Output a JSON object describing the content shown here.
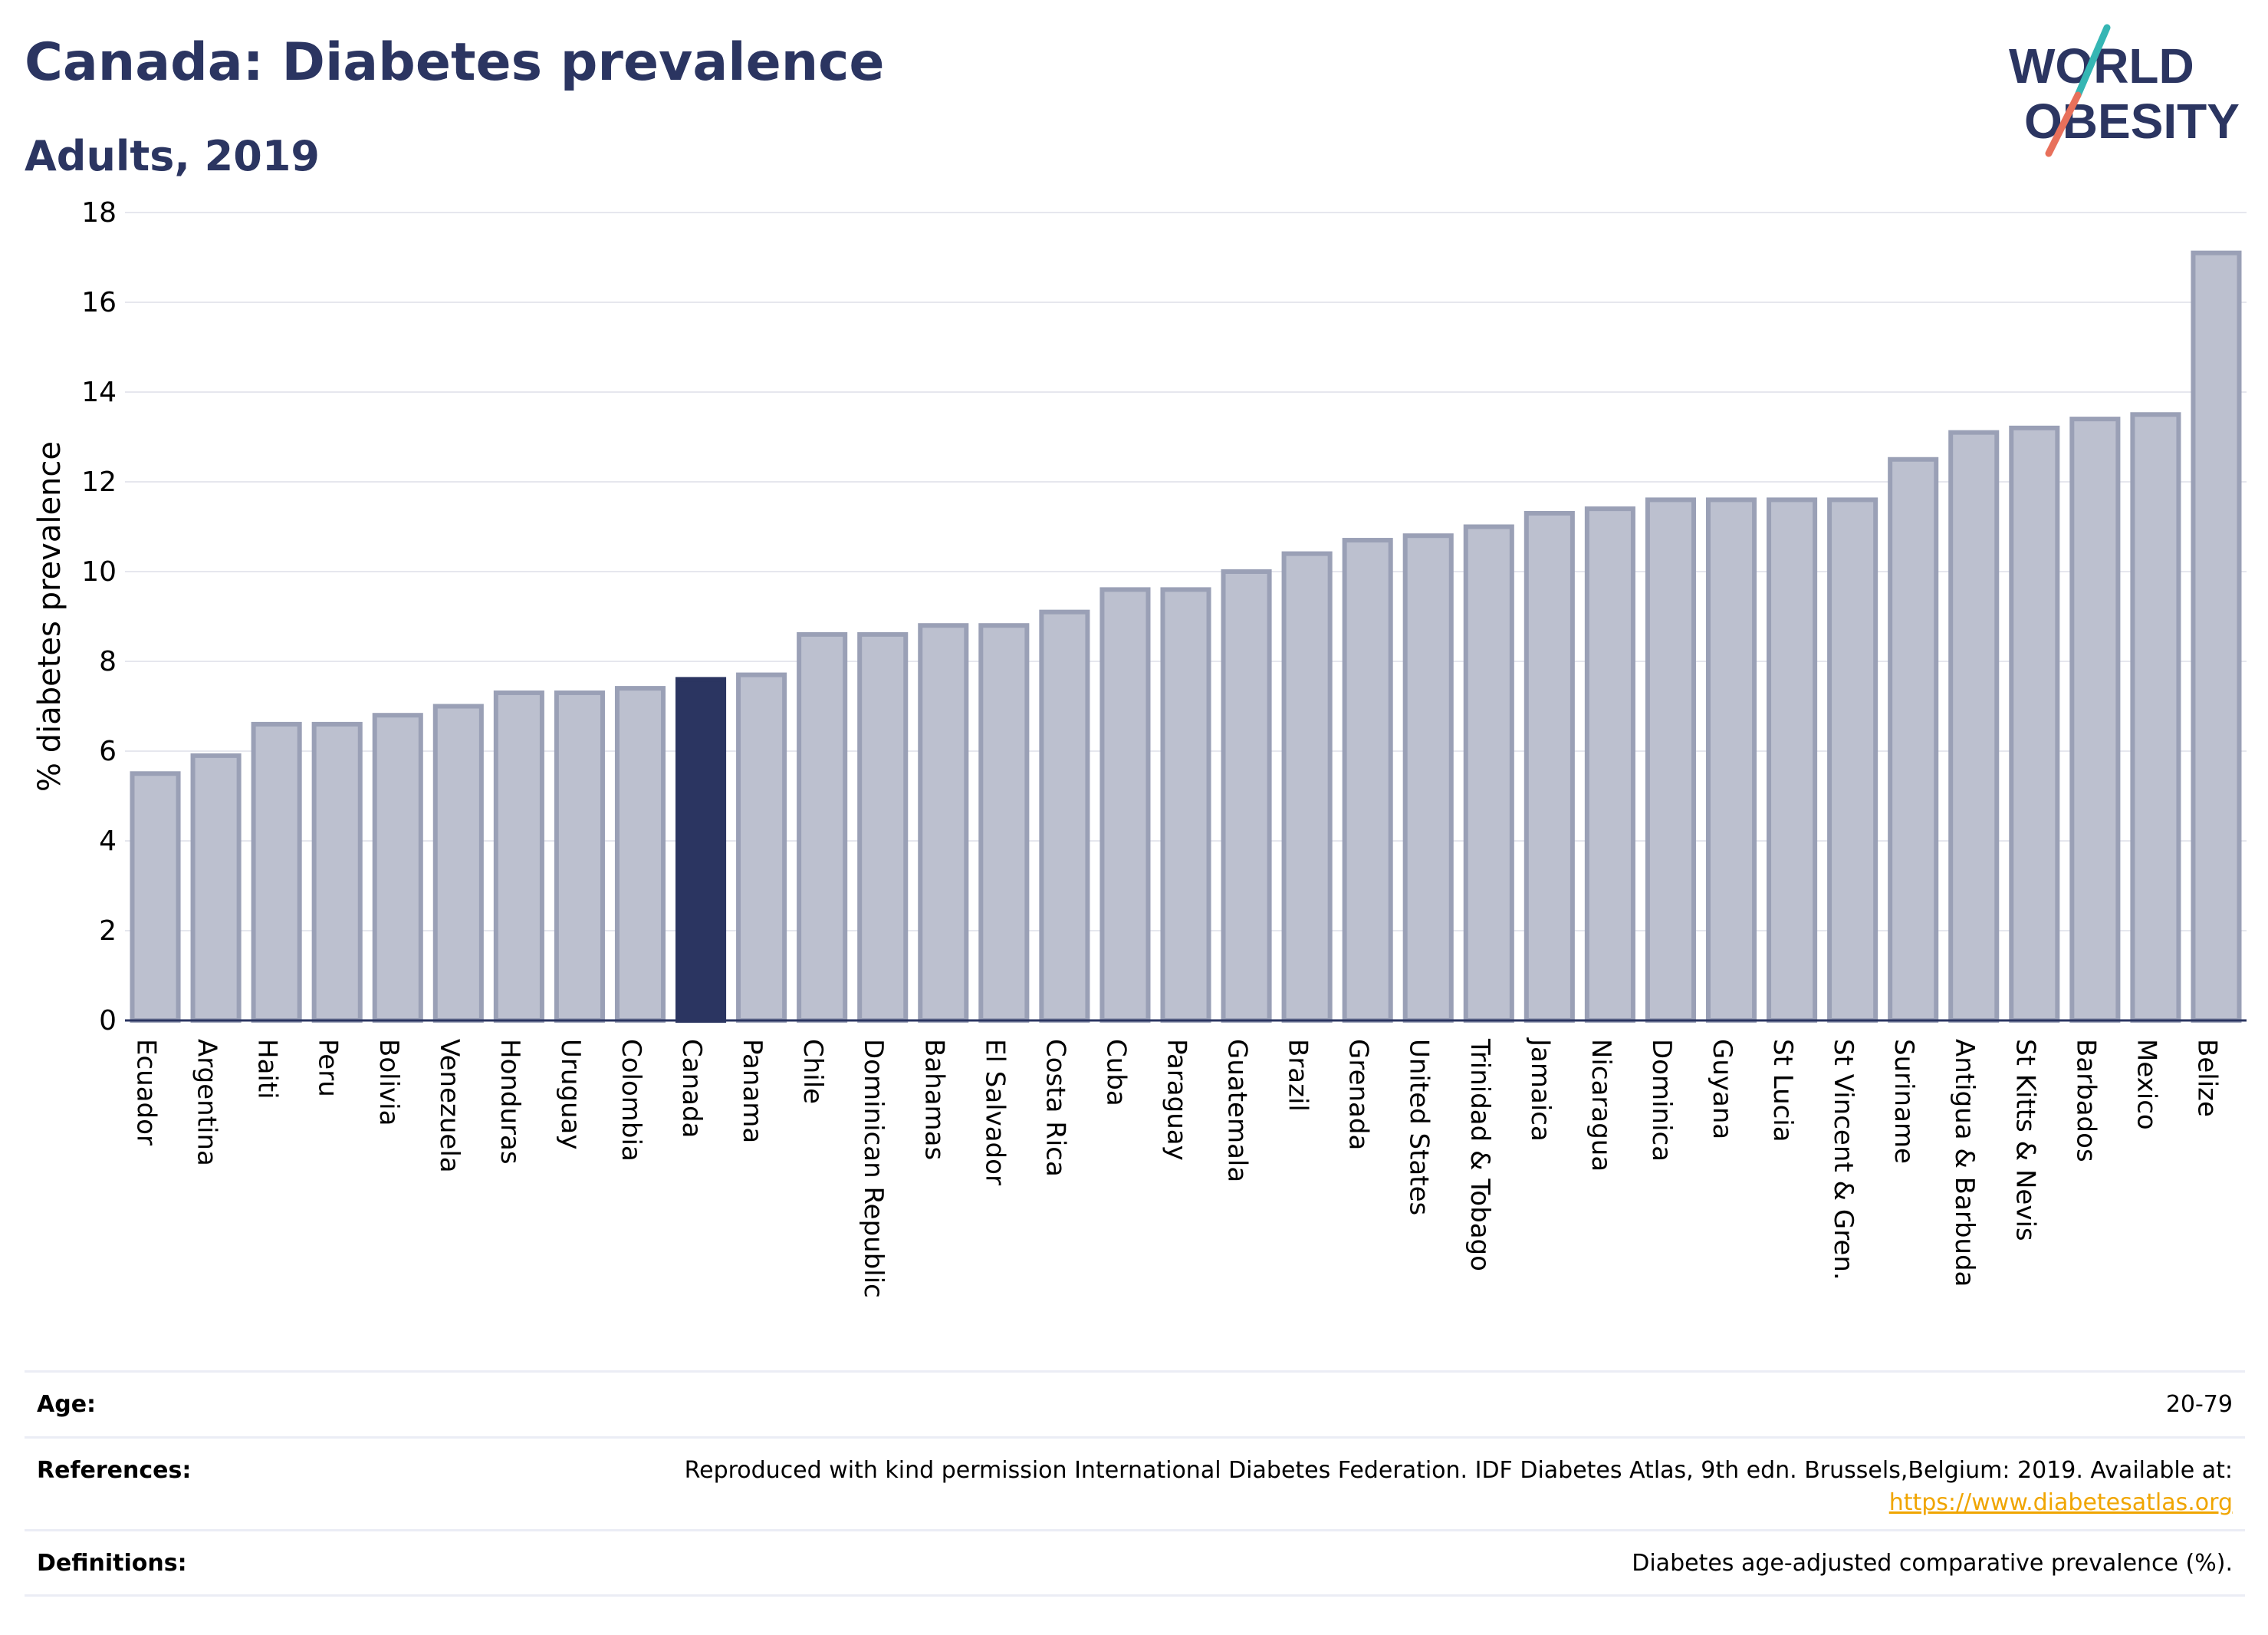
{
  "header": {
    "title": "Canada: Diabetes prevalence",
    "subtitle": "Adults, 2019"
  },
  "logo": {
    "line1": "WORLD",
    "line2": "OBESITY"
  },
  "colors": {
    "bar": "#bcc0cf",
    "bar_border": "#9aa0b6",
    "highlight": "#2b3561",
    "title": "#2b3561",
    "logo_slash_red": "#e8705b",
    "logo_slash_teal": "#35b6b4",
    "link": "#f0a500"
  },
  "chart_data": {
    "type": "bar",
    "title": "Canada: Diabetes prevalence",
    "subtitle": "Adults, 2019",
    "xlabel": "",
    "ylabel": "% diabetes prevalence",
    "ylim": [
      0,
      18
    ],
    "yticks": [
      0,
      2,
      4,
      6,
      8,
      10,
      12,
      14,
      16,
      18
    ],
    "grid": true,
    "highlight": "Canada",
    "categories": [
      "Ecuador",
      "Argentina",
      "Haiti",
      "Peru",
      "Bolivia",
      "Venezuela",
      "Honduras",
      "Uruguay",
      "Colombia",
      "Canada",
      "Panama",
      "Chile",
      "Dominican Republic",
      "Bahamas",
      "El Salvador",
      "Costa Rica",
      "Cuba",
      "Paraguay",
      "Guatemala",
      "Brazil",
      "Grenada",
      "United States",
      "Trinidad & Tobago",
      "Jamaica",
      "Nicaragua",
      "Dominica",
      "Guyana",
      "St Lucia",
      "St Vincent & Gren.",
      "Suriname",
      "Antigua & Barbuda",
      "St Kitts & Nevis",
      "Barbados",
      "Mexico",
      "Belize"
    ],
    "values": [
      5.5,
      5.9,
      6.6,
      6.6,
      6.8,
      7.0,
      7.3,
      7.3,
      7.4,
      7.6,
      7.7,
      8.6,
      8.6,
      8.8,
      8.8,
      9.1,
      9.6,
      9.6,
      10.0,
      10.4,
      10.7,
      10.8,
      11.0,
      11.3,
      11.4,
      11.6,
      11.6,
      11.6,
      11.6,
      12.5,
      13.1,
      13.2,
      13.4,
      13.5,
      17.1
    ]
  },
  "meta": {
    "age_label": "Age:",
    "age_value": "20-79",
    "references_label": "References:",
    "references_text": "Reproduced with kind permission International Diabetes Federation. IDF Diabetes Atlas, 9th edn. Brussels,Belgium: 2019. Available at:",
    "references_link": "https://www.diabetesatlas.org",
    "definitions_label": "Definitions:",
    "definitions_value": "Diabetes age-adjusted comparative prevalence (%)."
  }
}
